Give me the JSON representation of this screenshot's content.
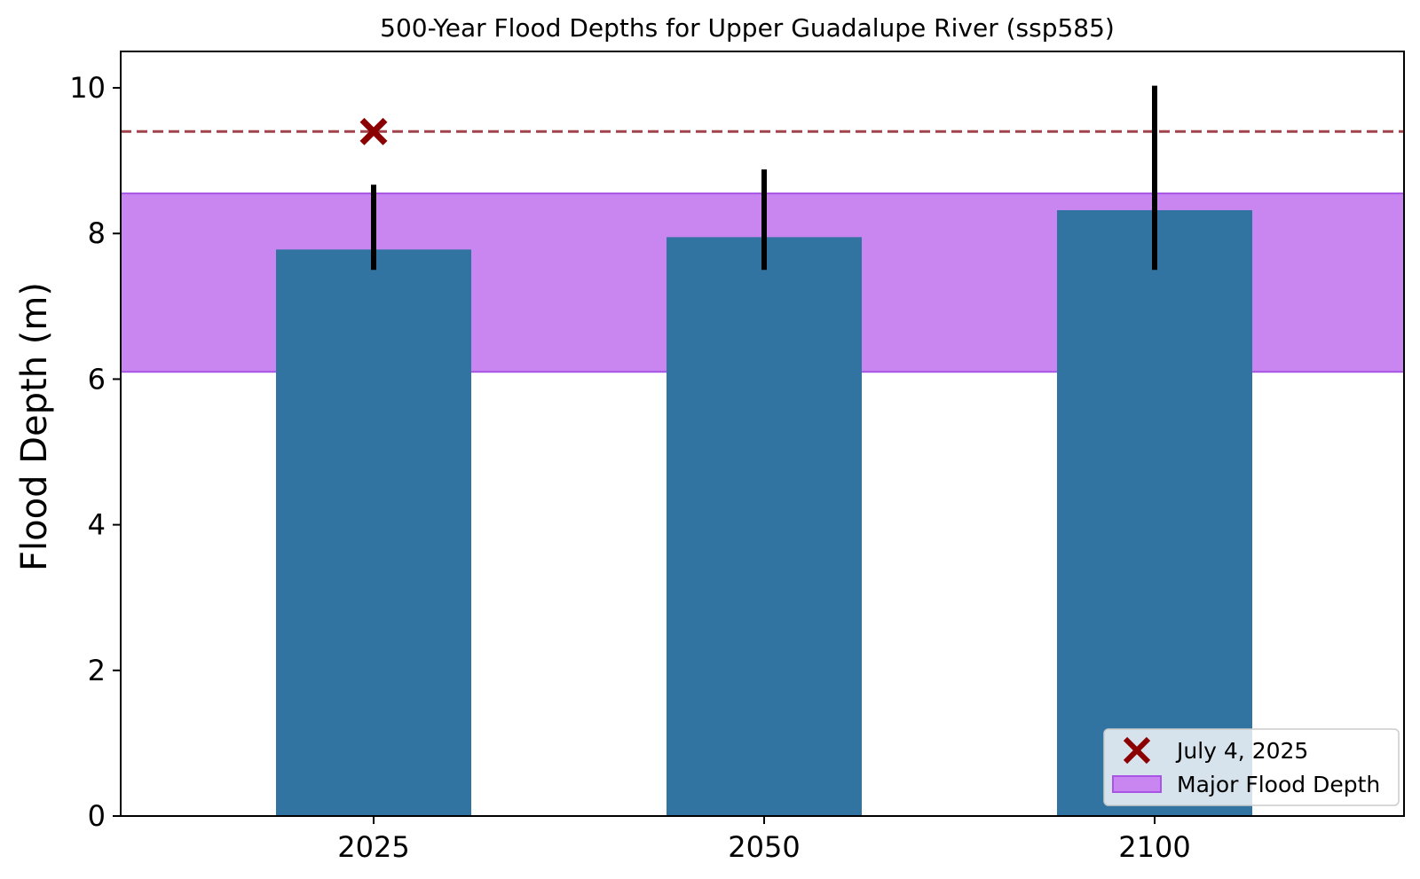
{
  "chart_data": {
    "type": "bar",
    "title": "500-Year Flood Depths for Upper Guadalupe River (ssp585)",
    "xlabel": "",
    "ylabel": "Flood Depth (m)",
    "categories": [
      "2025",
      "2050",
      "2100"
    ],
    "values": [
      7.78,
      7.95,
      8.32
    ],
    "error_bars": [
      {
        "low": 7.5,
        "high": 8.67
      },
      {
        "low": 7.5,
        "high": 8.88
      },
      {
        "low": 7.5,
        "high": 10.03
      }
    ],
    "ylim": [
      0,
      10.5
    ],
    "yticks": [
      0,
      2,
      4,
      6,
      8,
      10
    ],
    "major_flood_band": {
      "label": "Major Flood Depth",
      "low": 6.1,
      "high": 8.55
    },
    "reference_line": {
      "y": 9.4
    },
    "marker": {
      "label": "July 4, 2025",
      "category": "2025",
      "y": 9.4
    },
    "legend": {
      "position": "lower-right"
    },
    "grid": false,
    "colors": {
      "bar": "#3274a1",
      "band": "#c986f1",
      "band_edge": "#a855e6",
      "marker": "#8b0000",
      "reference_line": "#a0434c",
      "error_bar": "#000000"
    }
  }
}
